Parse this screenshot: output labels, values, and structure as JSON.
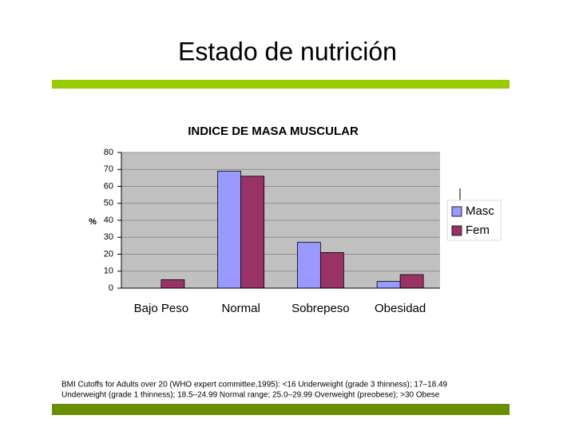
{
  "slide": {
    "title": "Estado de nutrición",
    "footnote": [
      "BMI Cutoffs for Adults over 20 (WHO expert committee,1995): <16  Underweight (grade 3 thinness); 17–18.49",
      "Underweight (grade 1 thinness); 18.5–24.99 Normal range; 25.0–29.99 Overweight (preobese); >30 Obese"
    ]
  },
  "chart_data": {
    "type": "bar",
    "title": "INDICE DE MASA MUSCULAR",
    "y_label": "%",
    "categories": [
      "Bajo Peso",
      "Normal",
      "Sobrepeso",
      "Obesidad"
    ],
    "series": [
      {
        "name": "Masc",
        "color": "#9999ff",
        "values": [
          0,
          69,
          27,
          4
        ]
      },
      {
        "name": "Fem",
        "color": "#993366",
        "values": [
          5,
          66,
          21,
          8
        ]
      }
    ],
    "ylim": [
      0,
      80
    ],
    "yticks": [
      0,
      10,
      20,
      30,
      40,
      50,
      60,
      70,
      80
    ],
    "grid": true,
    "legend": "right"
  }
}
